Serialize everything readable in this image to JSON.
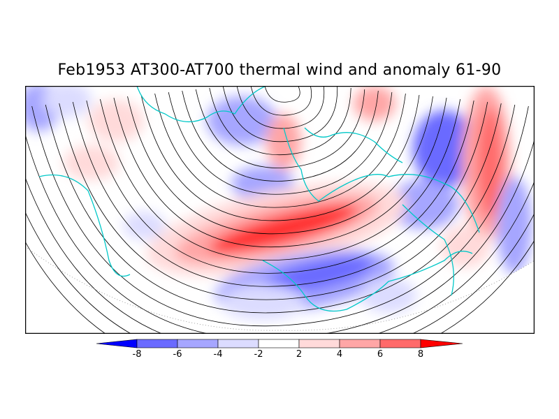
{
  "title": "Feb1953 AT300-AT700 thermal wind and anomaly 61-90",
  "colorbar": {
    "ticks": [
      "-8",
      "-6",
      "-4",
      "-2",
      "2",
      "4",
      "6",
      "8"
    ],
    "colors": [
      "#0000ff",
      "#6a6aff",
      "#a6a6ff",
      "#dcdcff",
      "#ffffff",
      "#ffdada",
      "#ffa6a6",
      "#ff6a6a",
      "#ff0000"
    ]
  },
  "colors": {
    "coastline": "#00c8c8",
    "streamline": "#000000"
  }
}
